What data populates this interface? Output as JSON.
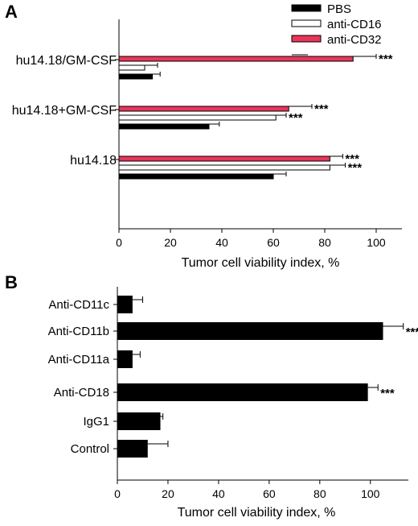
{
  "panel_a_letter": "A",
  "panel_b_letter": "B",
  "chart_data": [
    {
      "type": "bar",
      "orientation": "horizontal",
      "panel": "A",
      "categories": [
        "hu14.18/GM-CSF",
        "hu14.18+GM-CSF",
        "hu14.18"
      ],
      "series": [
        {
          "name": "PBS",
          "color": "#000000",
          "values": [
            13,
            35,
            60
          ],
          "errors": [
            3,
            4,
            5
          ],
          "significance": [
            "",
            "",
            ""
          ]
        },
        {
          "name": "anti-CD16",
          "color": "#ffffff",
          "values": [
            10,
            61,
            82
          ],
          "errors": [
            5,
            4,
            6
          ],
          "significance": [
            "",
            "***",
            "***"
          ]
        },
        {
          "name": "anti-CD32",
          "color": "#e8365b",
          "values": [
            91,
            66,
            82
          ],
          "errors": [
            9,
            9,
            5
          ],
          "significance": [
            "***",
            "***",
            "***"
          ]
        }
      ],
      "xlabel": "Tumor cell viability index, %",
      "xlim": [
        0,
        110
      ],
      "xticks": [
        0,
        20,
        40,
        60,
        80,
        100
      ],
      "legend_position": "top-right"
    },
    {
      "type": "bar",
      "orientation": "horizontal",
      "panel": "B",
      "categories": [
        "Anti-CD11c",
        "Anti-CD11b",
        "Anti-CD11a",
        "Anti-CD18",
        "IgG1",
        "Control"
      ],
      "series": [
        {
          "name": "",
          "color": "#000000",
          "values": [
            6,
            105,
            6,
            99,
            17,
            12
          ],
          "errors": [
            4,
            8,
            3,
            4,
            1,
            8
          ],
          "significance": [
            "",
            "***",
            "",
            "***",
            "",
            ""
          ]
        }
      ],
      "xlabel": "Tumor cell viability index, %",
      "xlim": [
        0,
        115
      ],
      "xticks": [
        0,
        20,
        40,
        60,
        80,
        100
      ]
    }
  ]
}
